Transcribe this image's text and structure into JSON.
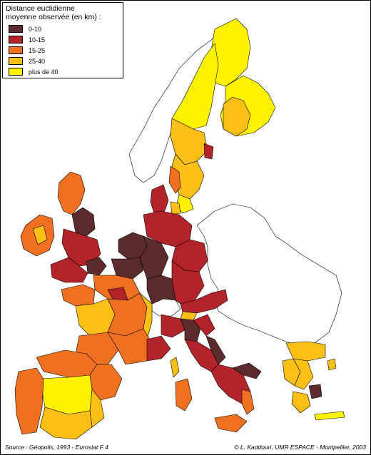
{
  "legend": {
    "title_lines": [
      "Distance euclidienne",
      "moyenne observée (en km) :"
    ],
    "classes": [
      {
        "label": "0-10",
        "color": "#5c2b2b"
      },
      {
        "label": "10-15",
        "color": "#b3232a"
      },
      {
        "label": "15-25",
        "color": "#f07021"
      },
      {
        "label": "25-40",
        "color": "#fcbf16"
      },
      {
        "label": "plus de 40",
        "color": "#fff200"
      }
    ]
  },
  "source": "Source : Géopolis, 1993 - Eurostat F 4",
  "credit": "© L. Kaddouri, UMR ESPACE - Montpellier, 2003",
  "colors": {
    "outline": "#000000",
    "no_data": "#ffffff",
    "background": "#ffffff"
  }
}
